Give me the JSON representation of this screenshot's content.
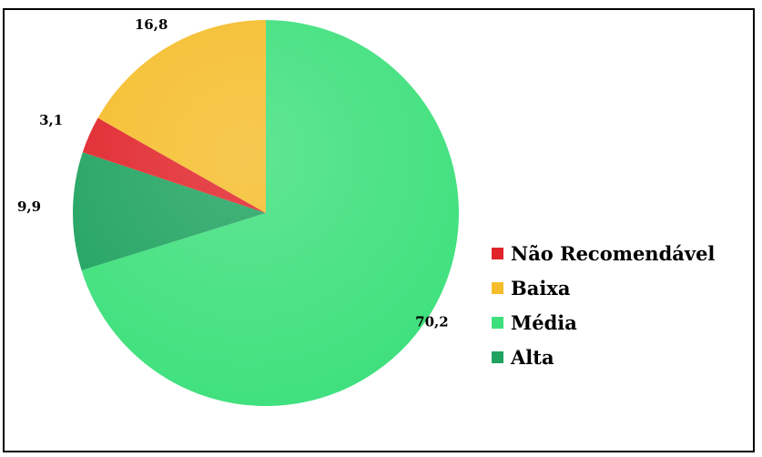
{
  "chart_data": {
    "type": "pie",
    "categories": [
      "Não Recomendável",
      "Baixa",
      "Média",
      "Alta"
    ],
    "values": [
      3.1,
      16.8,
      70.2,
      9.9
    ],
    "value_labels": [
      "3,1",
      "16,8",
      "70,2",
      "9,9"
    ],
    "colors": [
      "#e0242a",
      "#f5bd2a",
      "#3ee07c",
      "#1fa35f"
    ],
    "legend_position": "right",
    "start_angle": "top",
    "direction": "clockwise, beginning with Média"
  }
}
